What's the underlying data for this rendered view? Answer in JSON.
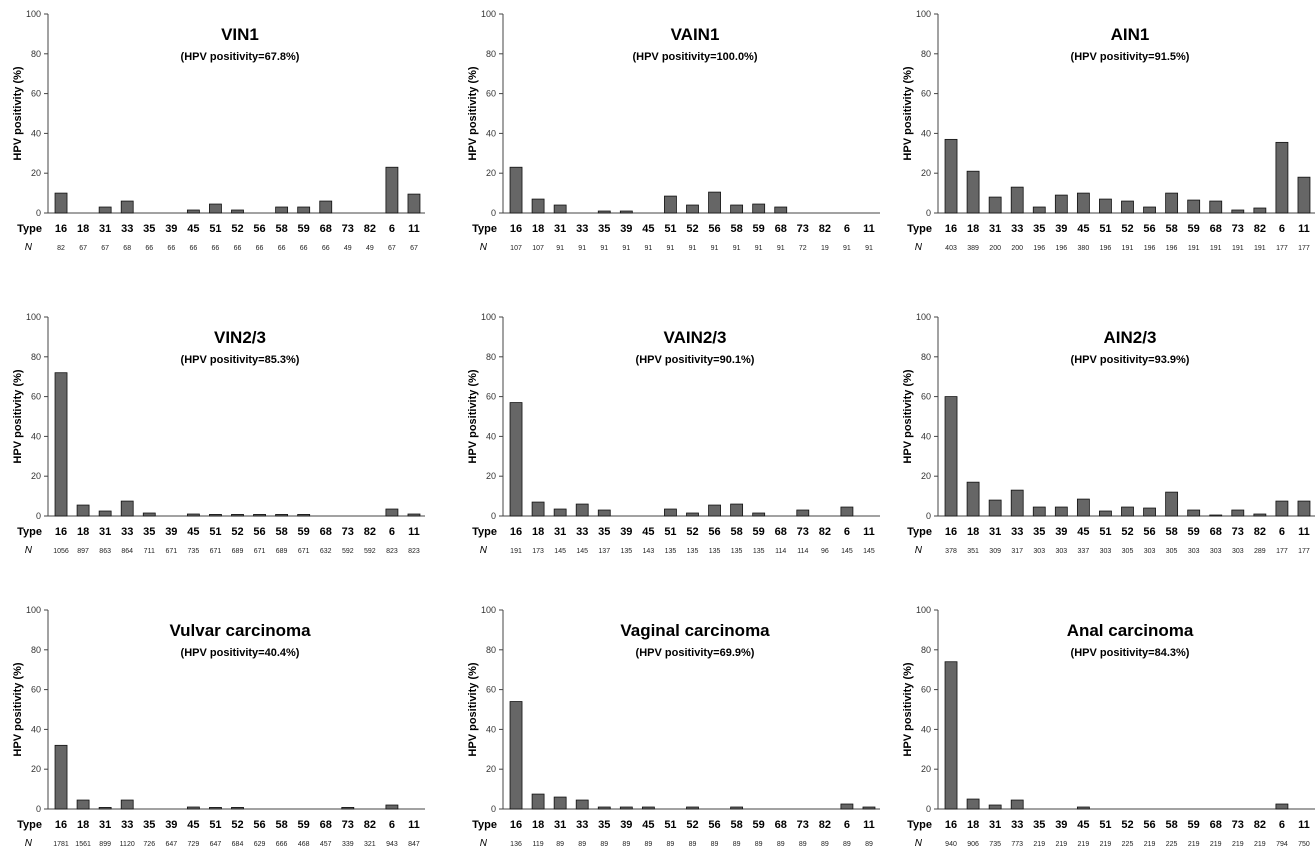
{
  "labels": {
    "type": "Type",
    "n": "N",
    "ylabel": "HPV positivity (%)"
  },
  "colors": {
    "bar_fill": "#666666",
    "bar_stroke": "#111111",
    "axis": "#444444"
  },
  "chart_data": [
    {
      "type": "bar",
      "title": "VIN1",
      "subtitle": "(HPV positivity=67.8%)",
      "ylabel": "HPV positivity (%)",
      "ylim": [
        0,
        100
      ],
      "yticks": [
        0,
        20,
        40,
        60,
        80,
        100
      ],
      "categories": [
        "16",
        "18",
        "31",
        "33",
        "35",
        "39",
        "45",
        "51",
        "52",
        "56",
        "58",
        "59",
        "68",
        "73",
        "82",
        "6",
        "11"
      ],
      "values": [
        10,
        0,
        3,
        6,
        0,
        0,
        1.5,
        4.5,
        1.5,
        0,
        3,
        3,
        6,
        0,
        0,
        23,
        9.5
      ],
      "n": [
        "82",
        "67",
        "67",
        "68",
        "66",
        "66",
        "66",
        "66",
        "66",
        "66",
        "66",
        "66",
        "66",
        "49",
        "49",
        "67",
        "67"
      ]
    },
    {
      "type": "bar",
      "title": "VAIN1",
      "subtitle": "(HPV positivity=100.0%)",
      "ylabel": "HPV positivity (%)",
      "ylim": [
        0,
        100
      ],
      "yticks": [
        0,
        20,
        40,
        60,
        80,
        100
      ],
      "categories": [
        "16",
        "18",
        "31",
        "33",
        "35",
        "39",
        "45",
        "51",
        "52",
        "56",
        "58",
        "59",
        "68",
        "73",
        "82",
        "6",
        "11"
      ],
      "values": [
        23,
        7,
        4,
        0,
        1,
        1,
        0,
        8.5,
        4,
        10.5,
        4,
        4.5,
        3,
        0,
        0,
        0,
        0
      ],
      "n": [
        "107",
        "107",
        "91",
        "91",
        "91",
        "91",
        "91",
        "91",
        "91",
        "91",
        "91",
        "91",
        "91",
        "72",
        "19",
        "91",
        "91"
      ]
    },
    {
      "type": "bar",
      "title": "AIN1",
      "subtitle": "(HPV positivity=91.5%)",
      "ylabel": "HPV positivity (%)",
      "ylim": [
        0,
        100
      ],
      "yticks": [
        0,
        20,
        40,
        60,
        80,
        100
      ],
      "categories": [
        "16",
        "18",
        "31",
        "33",
        "35",
        "39",
        "45",
        "51",
        "52",
        "56",
        "58",
        "59",
        "68",
        "73",
        "82",
        "6",
        "11"
      ],
      "values": [
        37,
        21,
        8,
        13,
        3,
        9,
        10,
        7,
        6,
        3,
        10,
        6.5,
        6,
        1.5,
        2.5,
        35.5,
        18
      ],
      "n": [
        "403",
        "389",
        "200",
        "200",
        "196",
        "196",
        "380",
        "196",
        "191",
        "196",
        "196",
        "191",
        "191",
        "191",
        "191",
        "177",
        "177"
      ]
    },
    {
      "type": "bar",
      "title": "VIN2/3",
      "subtitle": "(HPV positivity=85.3%)",
      "ylabel": "HPV positivity (%)",
      "ylim": [
        0,
        100
      ],
      "yticks": [
        0,
        20,
        40,
        60,
        80,
        100
      ],
      "categories": [
        "16",
        "18",
        "31",
        "33",
        "35",
        "39",
        "45",
        "51",
        "52",
        "56",
        "58",
        "59",
        "68",
        "73",
        "82",
        "6",
        "11"
      ],
      "values": [
        72,
        5.5,
        2.5,
        7.5,
        1.5,
        0,
        1,
        0.8,
        0.8,
        0.8,
        0.8,
        0.8,
        0,
        0,
        0,
        3.5,
        1
      ],
      "n": [
        "1056",
        "897",
        "863",
        "864",
        "711",
        "671",
        "735",
        "671",
        "689",
        "671",
        "689",
        "671",
        "632",
        "592",
        "592",
        "823",
        "823"
      ]
    },
    {
      "type": "bar",
      "title": "VAIN2/3",
      "subtitle": "(HPV positivity=90.1%)",
      "ylabel": "HPV positivity (%)",
      "ylim": [
        0,
        100
      ],
      "yticks": [
        0,
        20,
        40,
        60,
        80,
        100
      ],
      "categories": [
        "16",
        "18",
        "31",
        "33",
        "35",
        "39",
        "45",
        "51",
        "52",
        "56",
        "58",
        "59",
        "68",
        "73",
        "82",
        "6",
        "11"
      ],
      "values": [
        57,
        7,
        3.5,
        6,
        3,
        0,
        0,
        3.5,
        1.5,
        5.5,
        6,
        1.5,
        0,
        3,
        0,
        4.5,
        0
      ],
      "n": [
        "191",
        "173",
        "145",
        "145",
        "137",
        "135",
        "143",
        "135",
        "135",
        "135",
        "135",
        "135",
        "114",
        "114",
        "96",
        "145",
        "145"
      ]
    },
    {
      "type": "bar",
      "title": "AIN2/3",
      "subtitle": "(HPV positivity=93.9%)",
      "ylabel": "HPV positivity (%)",
      "ylim": [
        0,
        100
      ],
      "yticks": [
        0,
        20,
        40,
        60,
        80,
        100
      ],
      "categories": [
        "16",
        "18",
        "31",
        "33",
        "35",
        "39",
        "45",
        "51",
        "52",
        "56",
        "58",
        "59",
        "68",
        "73",
        "82",
        "6",
        "11"
      ],
      "values": [
        60,
        17,
        8,
        13,
        4.5,
        4.5,
        8.5,
        2.5,
        4.5,
        4,
        12,
        3,
        0.5,
        3,
        1,
        7.5,
        7.5
      ],
      "n": [
        "378",
        "351",
        "309",
        "317",
        "303",
        "303",
        "337",
        "303",
        "305",
        "303",
        "305",
        "303",
        "303",
        "303",
        "289",
        "177",
        "177"
      ]
    },
    {
      "type": "bar",
      "title": "Vulvar carcinoma",
      "subtitle": "(HPV positivity=40.4%)",
      "ylabel": "HPV positivity (%)",
      "ylim": [
        0,
        100
      ],
      "yticks": [
        0,
        20,
        40,
        60,
        80,
        100
      ],
      "categories": [
        "16",
        "18",
        "31",
        "33",
        "35",
        "39",
        "45",
        "51",
        "52",
        "56",
        "58",
        "59",
        "68",
        "73",
        "82",
        "6",
        "11"
      ],
      "values": [
        32,
        4.5,
        0.8,
        4.5,
        0,
        0,
        1,
        0.8,
        0.8,
        0,
        0,
        0,
        0,
        0.8,
        0,
        2,
        0
      ],
      "n": [
        "1781",
        "1561",
        "899",
        "1120",
        "726",
        "647",
        "729",
        "647",
        "684",
        "629",
        "666",
        "468",
        "457",
        "339",
        "321",
        "943",
        "847"
      ]
    },
    {
      "type": "bar",
      "title": "Vaginal carcinoma",
      "subtitle": "(HPV positivity=69.9%)",
      "ylabel": "HPV positivity (%)",
      "ylim": [
        0,
        100
      ],
      "yticks": [
        0,
        20,
        40,
        60,
        80,
        100
      ],
      "categories": [
        "16",
        "18",
        "31",
        "33",
        "35",
        "39",
        "45",
        "51",
        "52",
        "56",
        "58",
        "59",
        "68",
        "73",
        "82",
        "6",
        "11"
      ],
      "values": [
        54,
        7.5,
        6,
        4.5,
        1,
        1,
        1,
        0,
        1,
        0,
        1,
        0,
        0,
        0,
        0,
        2.5,
        1
      ],
      "n": [
        "136",
        "119",
        "89",
        "89",
        "89",
        "89",
        "89",
        "89",
        "89",
        "89",
        "89",
        "89",
        "89",
        "89",
        "89",
        "89",
        "89"
      ]
    },
    {
      "type": "bar",
      "title": "Anal carcinoma",
      "subtitle": "(HPV positivity=84.3%)",
      "ylabel": "HPV positivity (%)",
      "ylim": [
        0,
        100
      ],
      "yticks": [
        0,
        20,
        40,
        60,
        80,
        100
      ],
      "categories": [
        "16",
        "18",
        "31",
        "33",
        "35",
        "39",
        "45",
        "51",
        "52",
        "56",
        "58",
        "59",
        "68",
        "73",
        "82",
        "6",
        "11"
      ],
      "values": [
        74,
        5,
        2,
        4.5,
        0,
        0,
        1,
        0,
        0,
        0,
        0,
        0,
        0,
        0,
        0,
        2.5,
        0
      ],
      "n": [
        "940",
        "906",
        "735",
        "773",
        "219",
        "219",
        "219",
        "219",
        "225",
        "219",
        "225",
        "219",
        "219",
        "219",
        "219",
        "794",
        "750"
      ]
    }
  ]
}
